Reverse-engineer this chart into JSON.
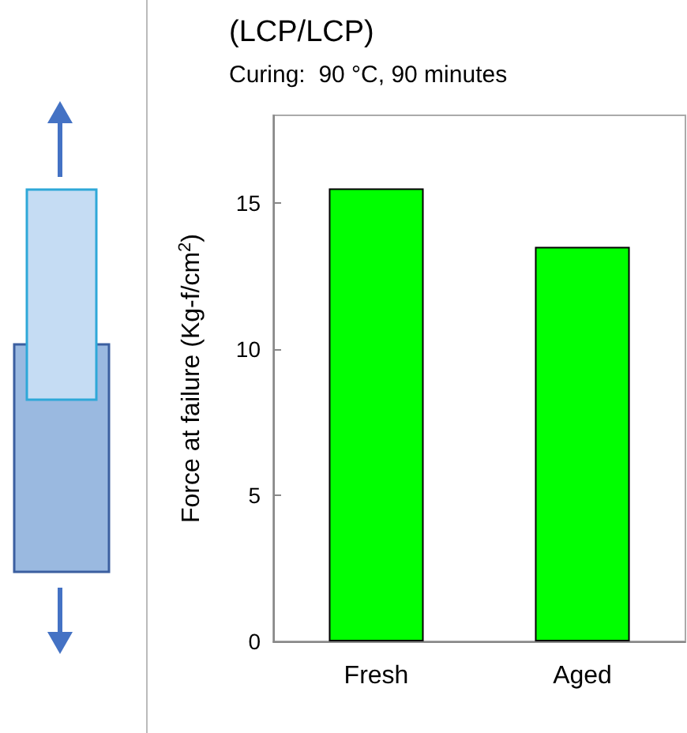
{
  "chart_data": {
    "type": "bar",
    "title": "(LCP/LCP)",
    "subtitle": "Curing:  90 °C, 90 minutes",
    "ylabel": "Force at failure (Kg-f/cm$^{2}$)",
    "categories": [
      "Fresh",
      "Aged"
    ],
    "values": [
      15.5,
      13.5
    ],
    "color": "#00ff00",
    "ylim": [
      0,
      18
    ],
    "yticks": [
      0,
      5,
      10,
      15
    ],
    "grid": false
  }
}
